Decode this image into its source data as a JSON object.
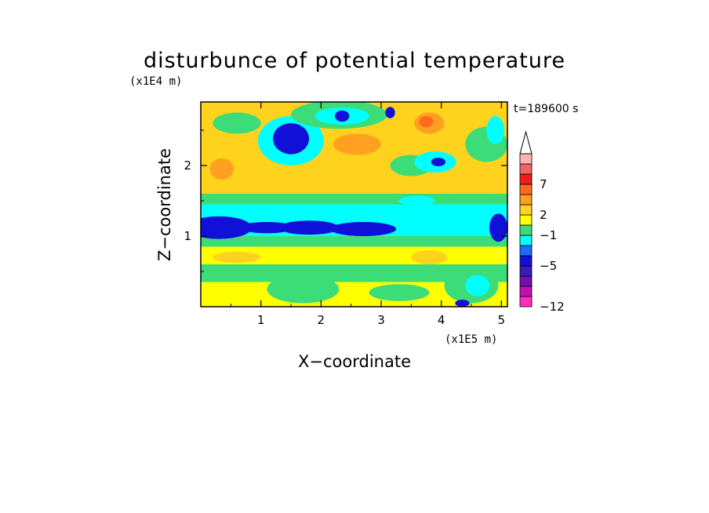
{
  "chart_data": {
    "type": "heatmap",
    "title": "disturbunce of potential temperature",
    "time_label": "t=189600 s",
    "xlabel": "X−coordinate",
    "ylabel": "Z−coordinate",
    "x_unit": "(x1E5 m)",
    "y_unit": "(x1E4 m)",
    "xlim": [
      0,
      5.1
    ],
    "ylim": [
      0,
      2.9
    ],
    "x_ticks": [
      {
        "v": 1,
        "label": "1"
      },
      {
        "v": 2,
        "label": "2"
      },
      {
        "v": 3,
        "label": "3"
      },
      {
        "v": 4,
        "label": "4"
      },
      {
        "v": 5,
        "label": "5"
      }
    ],
    "y_ticks": [
      {
        "v": 1,
        "label": "1"
      },
      {
        "v": 2,
        "label": "2"
      }
    ],
    "colorbar": {
      "levels_low_to_high": [
        "#ff2fbf",
        "#c010b0",
        "#7010b0",
        "#3a1ab8",
        "#1010d8",
        "#1e6cff",
        "#00ffff",
        "#3cdc78",
        "#ffff00",
        "#ffd21e",
        "#ffa020",
        "#ff6a1e",
        "#f01c1c",
        "#f06464",
        "#ffb4b4"
      ],
      "extend_top": true,
      "labels": [
        {
          "label": "7"
        },
        {
          "label": "2"
        },
        {
          "label": "−1"
        },
        {
          "label": "−5"
        },
        {
          "label": "−12"
        }
      ]
    },
    "field_bands": [
      {
        "z_min": 0.0,
        "z_max": 0.35,
        "color": "#ffff00"
      },
      {
        "z_min": 0.35,
        "z_max": 0.6,
        "color": "#3cdc78"
      },
      {
        "z_min": 0.6,
        "z_max": 0.85,
        "color": "#ffff00"
      },
      {
        "z_min": 0.85,
        "z_max": 1.0,
        "color": "#3cdc78"
      },
      {
        "z_min": 1.0,
        "z_max": 1.45,
        "color": "#00ffff"
      },
      {
        "z_min": 1.45,
        "z_max": 1.6,
        "color": "#3cdc78"
      },
      {
        "z_min": 1.6,
        "z_max": 2.9,
        "color": "#ffd21e"
      }
    ],
    "field_blobs": [
      {
        "x": 0.3,
        "z": 1.12,
        "rx": 0.55,
        "rz": 0.16,
        "color": "#1010d8"
      },
      {
        "x": 1.1,
        "z": 1.12,
        "rx": 0.45,
        "rz": 0.08,
        "color": "#1010d8"
      },
      {
        "x": 1.8,
        "z": 1.12,
        "rx": 0.5,
        "rz": 0.1,
        "color": "#1010d8"
      },
      {
        "x": 2.7,
        "z": 1.1,
        "rx": 0.55,
        "rz": 0.1,
        "color": "#1010d8"
      },
      {
        "x": 4.95,
        "z": 1.12,
        "rx": 0.15,
        "rz": 0.2,
        "color": "#1010d8"
      },
      {
        "x": 4.35,
        "z": 1.15,
        "rx": 0.2,
        "rz": 0.1,
        "color": "#00ffff"
      },
      {
        "x": 1.5,
        "z": 2.35,
        "rx": 0.55,
        "rz": 0.35,
        "color": "#00ffff"
      },
      {
        "x": 1.5,
        "z": 2.38,
        "rx": 0.3,
        "rz": 0.22,
        "color": "#1010d8"
      },
      {
        "x": 2.3,
        "z": 2.72,
        "rx": 0.8,
        "rz": 0.2,
        "color": "#3cdc78"
      },
      {
        "x": 2.35,
        "z": 2.7,
        "rx": 0.45,
        "rz": 0.12,
        "color": "#00ffff"
      },
      {
        "x": 2.35,
        "z": 2.7,
        "rx": 0.12,
        "rz": 0.08,
        "color": "#1010d8"
      },
      {
        "x": 3.15,
        "z": 2.75,
        "rx": 0.08,
        "rz": 0.08,
        "color": "#1010d8"
      },
      {
        "x": 3.5,
        "z": 2.0,
        "rx": 0.35,
        "rz": 0.15,
        "color": "#3cdc78"
      },
      {
        "x": 3.9,
        "z": 2.05,
        "rx": 0.35,
        "rz": 0.15,
        "color": "#00ffff"
      },
      {
        "x": 3.95,
        "z": 2.05,
        "rx": 0.12,
        "rz": 0.06,
        "color": "#1010d8"
      },
      {
        "x": 4.75,
        "z": 2.3,
        "rx": 0.35,
        "rz": 0.25,
        "color": "#3cdc78"
      },
      {
        "x": 4.9,
        "z": 2.5,
        "rx": 0.15,
        "rz": 0.2,
        "color": "#00ffff"
      },
      {
        "x": 3.8,
        "z": 2.6,
        "rx": 0.25,
        "rz": 0.15,
        "color": "#ffa020"
      },
      {
        "x": 3.75,
        "z": 2.62,
        "rx": 0.12,
        "rz": 0.08,
        "color": "#ff6a1e"
      },
      {
        "x": 0.35,
        "z": 1.95,
        "rx": 0.2,
        "rz": 0.15,
        "color": "#ffa020"
      },
      {
        "x": 2.6,
        "z": 2.3,
        "rx": 0.4,
        "rz": 0.15,
        "color": "#ffa020"
      },
      {
        "x": 0.6,
        "z": 2.6,
        "rx": 0.4,
        "rz": 0.15,
        "color": "#3cdc78"
      },
      {
        "x": 3.6,
        "z": 1.5,
        "rx": 0.3,
        "rz": 0.07,
        "color": "#00ffff"
      },
      {
        "x": 1.7,
        "z": 0.25,
        "rx": 0.6,
        "rz": 0.2,
        "color": "#3cdc78"
      },
      {
        "x": 3.3,
        "z": 0.2,
        "rx": 0.5,
        "rz": 0.12,
        "color": "#3cdc78"
      },
      {
        "x": 4.5,
        "z": 0.3,
        "rx": 0.45,
        "rz": 0.25,
        "color": "#3cdc78"
      },
      {
        "x": 4.6,
        "z": 0.3,
        "rx": 0.2,
        "rz": 0.15,
        "color": "#00ffff"
      },
      {
        "x": 0.6,
        "z": 0.7,
        "rx": 0.4,
        "rz": 0.08,
        "color": "#ffd21e"
      },
      {
        "x": 3.8,
        "z": 0.7,
        "rx": 0.3,
        "rz": 0.1,
        "color": "#ffd21e"
      },
      {
        "x": 4.35,
        "z": 0.05,
        "rx": 0.12,
        "rz": 0.05,
        "color": "#1010d8"
      }
    ]
  }
}
